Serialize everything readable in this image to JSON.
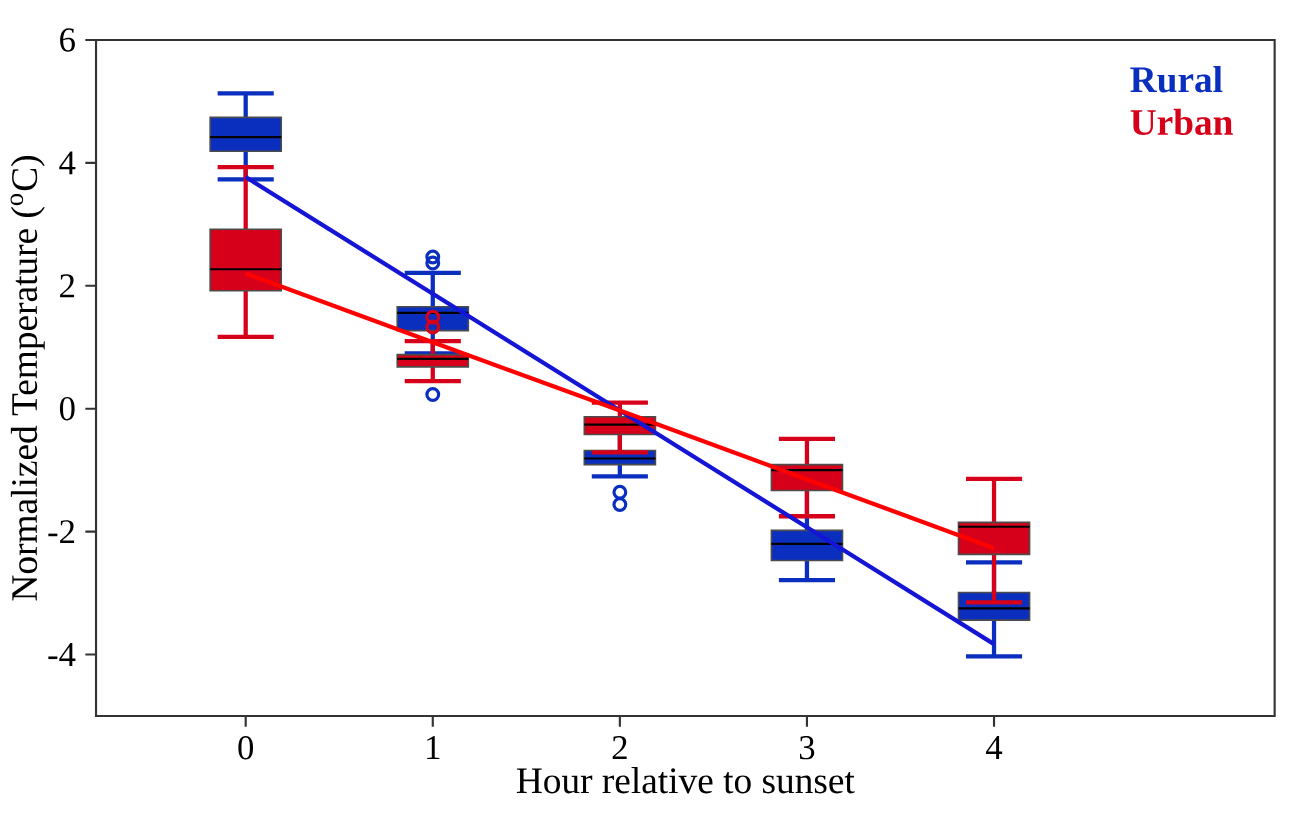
{
  "chart_data": {
    "type": "box",
    "xlabel": "Hour relative to sunset",
    "ylabel": "Normalized Temperature ($^{o}$C)",
    "categories": [
      "0",
      "1",
      "2",
      "3",
      "4"
    ],
    "ylim": [
      -5,
      6
    ],
    "yticks": [
      -4,
      -2,
      0,
      2,
      4,
      6
    ],
    "legend": "top right",
    "series": [
      {
        "name": "Rural",
        "color": "#0a2fbf",
        "boxes": [
          {
            "low": 3.73,
            "q1": 4.19,
            "median": 4.42,
            "q3": 4.74,
            "high": 5.13
          },
          {
            "low": 0.9,
            "q1": 1.27,
            "median": 1.56,
            "q3": 1.66,
            "high": 2.21,
            "outliers": [
              2.47,
              2.37,
              0.23
            ]
          },
          {
            "low": -1.1,
            "q1": -0.91,
            "median": -0.81,
            "q3": -0.68,
            "high": -0.39,
            "outliers": [
              -1.36,
              -1.56
            ]
          },
          {
            "low": -2.79,
            "q1": -2.47,
            "median": -2.2,
            "q3": -1.98,
            "high": -1.3
          },
          {
            "low": -4.03,
            "q1": -3.44,
            "median": -3.25,
            "q3": -2.99,
            "high": -2.5
          }
        ]
      },
      {
        "name": "Urban",
        "color": "#d7001a",
        "boxes": [
          {
            "low": 1.17,
            "q1": 1.92,
            "median": 2.27,
            "q3": 2.92,
            "high": 3.93
          },
          {
            "low": 0.45,
            "q1": 0.68,
            "median": 0.81,
            "q3": 0.88,
            "high": 1.1,
            "outliers": [
              1.49,
              1.33
            ]
          },
          {
            "low": -0.71,
            "q1": -0.42,
            "median": -0.26,
            "q3": -0.13,
            "high": 0.1
          },
          {
            "low": -1.75,
            "q1": -1.33,
            "median": -1.0,
            "q3": -0.91,
            "high": -0.49
          },
          {
            "low": -3.15,
            "q1": -2.37,
            "median": -1.92,
            "q3": -1.85,
            "high": -1.14
          }
        ]
      },
      {
        "type": "line",
        "color": "#1515d5",
        "values": [
          3.77,
          1.87,
          -0.03,
          -1.93,
          -3.83
        ]
      },
      {
        "type": "line",
        "color": "#ff0000",
        "values": [
          2.2,
          1.08,
          -0.03,
          -1.15,
          -2.27
        ]
      }
    ]
  }
}
